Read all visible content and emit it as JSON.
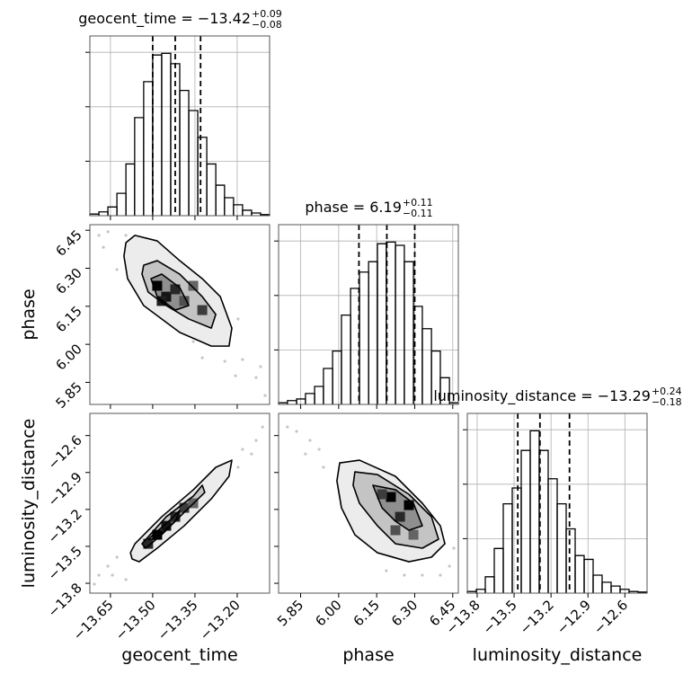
{
  "chart_data": {
    "type": "corner",
    "color": "#000000",
    "point_color": "#808080",
    "contour_fills": [
      "#ececec",
      "#c4c4c4",
      "#8f8f8f"
    ],
    "grid": true,
    "hist_ylim": [
      0,
      3.3
    ],
    "hist_yticks": [
      1,
      2,
      3
    ],
    "parameters": [
      {
        "label": "geocent_time",
        "title": "geocent_time = −13.42",
        "title_upper": "+0.09",
        "title_lower": "−0.08",
        "lim": [
          -13.723,
          -13.085
        ],
        "ticks": [
          {
            "value": -13.65,
            "label": "−13.65"
          },
          {
            "value": -13.5,
            "label": "−13.50"
          },
          {
            "value": -13.35,
            "label": "−13.35"
          },
          {
            "value": -13.2,
            "label": "−13.20"
          }
        ],
        "quantiles": [
          -13.5,
          -13.42,
          -13.33
        ],
        "bins": [
          -13.723,
          -13.691,
          -13.659,
          -13.627,
          -13.595,
          -13.564,
          -13.532,
          -13.5,
          -13.468,
          -13.436,
          -13.404,
          -13.372,
          -13.34,
          -13.308,
          -13.276,
          -13.245,
          -13.213,
          -13.181,
          -13.149,
          -13.117,
          -13.085
        ],
        "values": [
          0.03,
          0.07,
          0.16,
          0.41,
          0.95,
          1.8,
          2.46,
          2.95,
          2.98,
          2.79,
          2.3,
          1.93,
          1.44,
          0.95,
          0.56,
          0.33,
          0.2,
          0.1,
          0.05,
          0.02
        ]
      },
      {
        "label": "phase",
        "title": "phase = 6.19",
        "title_upper": "+0.11",
        "title_lower": "−0.11",
        "lim": [
          5.763,
          6.472
        ],
        "ticks": [
          5.85,
          {
            "value": 6.0,
            "label": "6.00"
          },
          6.15,
          {
            "value": 6.3,
            "label": "6.30"
          },
          6.45
        ],
        "quantiles": [
          6.08,
          6.19,
          6.3
        ],
        "bins": [
          5.763,
          5.798,
          5.834,
          5.869,
          5.905,
          5.94,
          5.976,
          6.011,
          6.047,
          6.082,
          6.118,
          6.153,
          6.188,
          6.224,
          6.259,
          6.295,
          6.33,
          6.366,
          6.401,
          6.437,
          6.472
        ],
        "values": [
          0.03,
          0.07,
          0.1,
          0.2,
          0.33,
          0.66,
          0.98,
          1.64,
          2.13,
          2.43,
          2.62,
          2.95,
          2.98,
          2.92,
          2.62,
          1.8,
          1.39,
          0.98,
          0.49,
          0.03
        ]
      },
      {
        "label": "luminosity_distance",
        "title": "luminosity_distance = −13.29",
        "title_upper": "+0.24",
        "title_lower": "−0.18",
        "lim": [
          -13.88,
          -12.42
        ],
        "ticks": [
          {
            "value": -13.8,
            "label": "−13.8"
          },
          {
            "value": -13.5,
            "label": "−13.5"
          },
          {
            "value": -13.2,
            "label": "−13.2"
          },
          {
            "value": -12.9,
            "label": "−12.9"
          },
          {
            "value": -12.6,
            "label": "−12.6"
          }
        ],
        "quantiles": [
          -13.47,
          -13.29,
          -13.05
        ],
        "bins": [
          -13.88,
          -13.807,
          -13.734,
          -13.661,
          -13.588,
          -13.515,
          -13.442,
          -13.369,
          -13.296,
          -13.223,
          -13.15,
          -13.077,
          -13.004,
          -12.931,
          -12.858,
          -12.785,
          -12.712,
          -12.639,
          -12.566,
          -12.493,
          -12.42
        ],
        "values": [
          0.03,
          0.07,
          0.3,
          0.82,
          1.64,
          1.93,
          2.62,
          2.98,
          2.62,
          2.1,
          1.64,
          1.18,
          0.69,
          0.62,
          0.33,
          0.2,
          0.13,
          0.07,
          0.03,
          0.02
        ]
      }
    ],
    "panels": [
      {
        "x": 0,
        "y": 1,
        "points_x": [
          -13.691,
          -13.659,
          -13.675,
          -13.627,
          -13.133,
          -13.117,
          -13.181,
          -13.244,
          -13.324,
          -13.206,
          -13.101,
          -13.595,
          -13.197,
          -13.356
        ],
        "points_y": [
          6.43,
          6.444,
          6.383,
          6.295,
          5.869,
          5.912,
          5.94,
          5.933,
          5.947,
          5.876,
          5.798,
          6.43,
          6.1,
          6.011
        ],
        "contours": [
          {
            "x": [
              -13.595,
              -13.563,
              -13.484,
              -13.404,
              -13.324,
              -13.26,
              -13.219,
              -13.229,
              -13.292,
              -13.404,
              -13.532,
              -13.589,
              -13.602
            ],
            "y": [
              6.401,
              6.43,
              6.408,
              6.33,
              6.259,
              6.188,
              6.064,
              5.993,
              5.993,
              6.047,
              6.153,
              6.259,
              6.348
            ]
          },
          {
            "x": [
              -13.532,
              -13.484,
              -13.404,
              -13.324,
              -13.276,
              -13.292,
              -13.372,
              -13.452,
              -13.516,
              -13.538
            ],
            "y": [
              6.312,
              6.33,
              6.277,
              6.188,
              6.118,
              6.064,
              6.1,
              6.153,
              6.206,
              6.277
            ]
          },
          {
            "x": [
              -13.506,
              -13.468,
              -13.404,
              -13.372,
              -13.42,
              -13.484
            ],
            "y": [
              6.259,
              6.277,
              6.224,
              6.153,
              6.135,
              6.188
            ]
          }
        ],
        "cells": {
          "x": [
            -13.484,
            -13.452,
            -13.42,
            -13.468,
            -13.388,
            -13.324,
            -13.356
          ],
          "y": [
            6.231,
            6.188,
            6.217,
            6.171,
            6.171,
            6.135,
            6.231
          ],
          "values": [
            1.0,
            0.9,
            0.8,
            0.85,
            0.6,
            0.7,
            0.5
          ]
        }
      },
      {
        "x": 0,
        "y": 2,
        "points_x": [
          -13.691,
          -13.659,
          -13.627,
          -13.595,
          -13.181,
          -13.133,
          -13.11,
          -13.149,
          -13.197,
          -13.643,
          -13.244,
          -13.707
        ],
        "points_y": [
          -13.734,
          -13.661,
          -13.588,
          -13.77,
          -12.712,
          -12.639,
          -12.53,
          -12.749,
          -12.858,
          -13.734,
          -12.968,
          -13.807
        ],
        "contours": [
          {
            "x": [
              -13.579,
              -13.563,
              -13.468,
              -13.356,
              -13.276,
              -13.219,
              -13.229,
              -13.292,
              -13.388,
              -13.484,
              -13.548,
              -13.573
            ],
            "y": [
              -13.552,
              -13.479,
              -13.26,
              -13.041,
              -12.858,
              -12.8,
              -12.931,
              -13.114,
              -13.333,
              -13.515,
              -13.625,
              -13.603
            ]
          },
          {
            "x": [
              -13.538,
              -13.452,
              -13.356,
              -13.324,
              -13.315,
              -13.388,
              -13.468,
              -13.525
            ],
            "y": [
              -13.479,
              -13.26,
              -13.092,
              -13.004,
              -13.062,
              -13.223,
              -13.406,
              -13.515
            ]
          },
          {
            "x": [
              -13.516,
              -13.436,
              -13.404,
              -13.42,
              -13.493
            ],
            "y": [
              -13.442,
              -13.281,
              -13.208,
              -13.296,
              -13.442
            ]
          }
        ],
        "cells": {
          "x": [
            -13.484,
            -13.452,
            -13.42,
            -13.388,
            -13.516,
            -13.356
          ],
          "y": [
            -13.406,
            -13.333,
            -13.26,
            -13.187,
            -13.479,
            -13.15
          ],
          "values": [
            1.0,
            0.9,
            0.8,
            0.7,
            0.8,
            0.5
          ]
        }
      },
      {
        "x": 1,
        "y": 2,
        "points_x": [
          5.798,
          5.834,
          5.887,
          5.923,
          5.869,
          6.437,
          6.401,
          6.33,
          6.188,
          6.454,
          5.94,
          6.259
        ],
        "points_y": [
          -12.53,
          -12.566,
          -12.639,
          -12.712,
          -12.749,
          -13.661,
          -13.734,
          -13.734,
          -13.698,
          -13.515,
          -12.858,
          -13.734
        ],
        "contours": [
          {
            "x": [
              6.004,
              6.082,
              6.224,
              6.33,
              6.401,
              6.419,
              6.366,
              6.277,
              6.153,
              6.064,
              6.011,
              5.993
            ],
            "y": [
              -12.822,
              -12.8,
              -12.931,
              -13.15,
              -13.333,
              -13.479,
              -13.588,
              -13.625,
              -13.552,
              -13.406,
              -13.187,
              -12.968
            ]
          },
          {
            "x": [
              6.064,
              6.153,
              6.277,
              6.366,
              6.394,
              6.33,
              6.224,
              6.153,
              6.082,
              6.057
            ],
            "y": [
              -12.895,
              -12.917,
              -13.077,
              -13.26,
              -13.442,
              -13.515,
              -13.479,
              -13.333,
              -13.15,
              -13.004
            ]
          },
          {
            "x": [
              6.135,
              6.224,
              6.295,
              6.33,
              6.277,
              6.224,
              6.171
            ],
            "y": [
              -13.004,
              -13.04,
              -13.15,
              -13.333,
              -13.369,
              -13.296,
              -13.187
            ]
          }
        ],
        "cells": {
          "x": [
            6.206,
            6.277,
            6.242,
            6.171,
            6.224,
            6.295
          ],
          "y": [
            -13.099,
            -13.165,
            -13.26,
            -13.077,
            -13.369,
            -13.406
          ],
          "values": [
            1.0,
            1.0,
            0.8,
            0.7,
            0.6,
            0.5
          ]
        }
      }
    ]
  }
}
